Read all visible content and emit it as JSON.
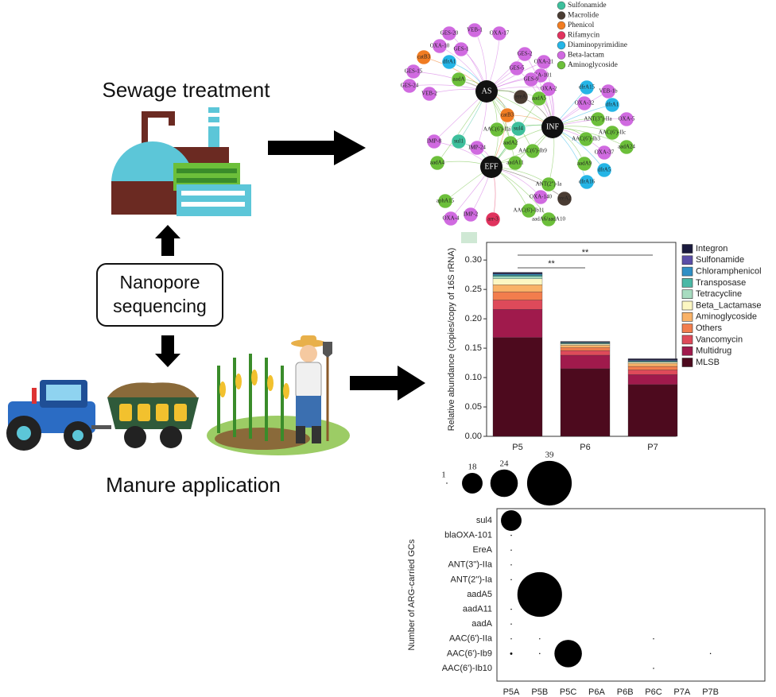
{
  "labels": {
    "sewage": "Sewage treatment",
    "nanopore": [
      "Nanopore",
      "sequencing"
    ],
    "manure": "Manure application"
  },
  "network": {
    "hubs": [
      "AS",
      "INF",
      "EFF"
    ],
    "classes": [
      {
        "name": "Sulfonamide",
        "color": "#3dbf9c"
      },
      {
        "name": "Macrolide",
        "color": "#4a3c33"
      },
      {
        "name": "Phenicol",
        "color": "#f07c22"
      },
      {
        "name": "Rifamycin",
        "color": "#e0335e"
      },
      {
        "name": "Diaminopyrimidine",
        "color": "#25b5e6"
      },
      {
        "name": "Beta-lactam",
        "color": "#d06ae0"
      },
      {
        "name": "Aminoglycoside",
        "color": "#6cbf3a"
      }
    ],
    "nodes": [
      {
        "label": "GES-20",
        "class": 5,
        "links": [
          0
        ]
      },
      {
        "label": "VEB-1",
        "class": 5,
        "links": [
          0
        ]
      },
      {
        "label": "OXA-17",
        "class": 5,
        "links": [
          0
        ]
      },
      {
        "label": "OXA-10",
        "class": 5,
        "links": [
          0
        ]
      },
      {
        "label": "GES-1",
        "class": 5,
        "links": [
          0
        ]
      },
      {
        "label": "catB3",
        "class": 2,
        "links": [
          0
        ]
      },
      {
        "label": "dfrA1",
        "class": 4,
        "links": [
          0
        ]
      },
      {
        "label": "GES-15",
        "class": 5,
        "links": [
          0
        ]
      },
      {
        "label": "aadA",
        "class": 6,
        "links": [
          0,
          1
        ]
      },
      {
        "label": "GES-24",
        "class": 5,
        "links": [
          0
        ]
      },
      {
        "label": "VEB-2",
        "class": 5,
        "links": [
          0
        ]
      },
      {
        "label": "GES-2",
        "class": 5,
        "links": [
          0,
          1
        ]
      },
      {
        "label": "OXA-21",
        "class": 5,
        "links": [
          0,
          1
        ]
      },
      {
        "label": "GES-5",
        "class": 5,
        "links": [
          0,
          1
        ]
      },
      {
        "label": "OXA-101",
        "class": 5,
        "links": [
          0,
          1
        ]
      },
      {
        "label": "GES-9",
        "class": 5,
        "links": [
          0,
          1
        ]
      },
      {
        "label": "OXA-2",
        "class": 5,
        "links": [
          0,
          1
        ]
      },
      {
        "label": "ereA",
        "class": 1,
        "links": [
          0,
          1
        ]
      },
      {
        "label": "aadA5",
        "class": 6,
        "links": [
          0,
          1,
          2
        ]
      },
      {
        "label": "catB3",
        "class": 2,
        "links": [
          0,
          1,
          2
        ]
      },
      {
        "label": "sul4",
        "class": 0,
        "links": [
          0,
          1,
          2
        ]
      },
      {
        "label": "AAC(6')-IIa",
        "class": 6,
        "links": [
          0,
          1,
          2
        ]
      },
      {
        "label": "sul1",
        "class": 0,
        "links": [
          0,
          2
        ]
      },
      {
        "label": "IMP-8",
        "class": 5,
        "links": [
          0,
          2
        ]
      },
      {
        "label": "IMP-24",
        "class": 5,
        "links": [
          0,
          2
        ]
      },
      {
        "label": "aadA2",
        "class": 6,
        "links": [
          0,
          1,
          2
        ]
      },
      {
        "label": "aadA4",
        "class": 6,
        "links": [
          0,
          2
        ]
      },
      {
        "label": "AAC(6')-Ib9",
        "class": 6,
        "links": [
          0,
          1,
          2
        ]
      },
      {
        "label": "aadA11",
        "class": 6,
        "links": [
          0,
          1,
          2
        ]
      },
      {
        "label": "dfrA15",
        "class": 4,
        "links": [
          1
        ]
      },
      {
        "label": "VEB-1b",
        "class": 5,
        "links": [
          1
        ]
      },
      {
        "label": "OXA-32",
        "class": 5,
        "links": [
          1
        ]
      },
      {
        "label": "dfrA1",
        "class": 4,
        "links": [
          1
        ]
      },
      {
        "label": "ANT(3'')-IIa",
        "class": 6,
        "links": [
          1
        ]
      },
      {
        "label": "OXA-5",
        "class": 5,
        "links": [
          1
        ]
      },
      {
        "label": "AAC(6')-IIc",
        "class": 6,
        "links": [
          1
        ]
      },
      {
        "label": "AAC(6')-Ib3",
        "class": 6,
        "links": [
          1
        ]
      },
      {
        "label": "aadA24",
        "class": 6,
        "links": [
          1
        ]
      },
      {
        "label": "OXA-37",
        "class": 5,
        "links": [
          1
        ]
      },
      {
        "label": "aadA9",
        "class": 6,
        "links": [
          1
        ]
      },
      {
        "label": "dfrA5",
        "class": 4,
        "links": [
          1
        ]
      },
      {
        "label": "dfrA16",
        "class": 4,
        "links": [
          1
        ]
      },
      {
        "label": "ANT(2'')-Ia",
        "class": 6,
        "links": [
          1,
          2
        ]
      },
      {
        "label": "OXA-140",
        "class": 5,
        "links": [
          2
        ]
      },
      {
        "label": "ereA2",
        "class": 1,
        "links": [
          2
        ]
      },
      {
        "label": "aphA15",
        "class": 6,
        "links": [
          2
        ]
      },
      {
        "label": "AAC(6')-Ib11",
        "class": 6,
        "links": [
          2
        ]
      },
      {
        "label": "aadA6/aadA10",
        "class": 6,
        "links": [
          2
        ]
      },
      {
        "label": "OXA-4",
        "class": 5,
        "links": [
          2
        ]
      },
      {
        "label": "IMP-2",
        "class": 5,
        "links": [
          2
        ]
      },
      {
        "label": "arr-3",
        "class": 3,
        "links": [
          2
        ]
      }
    ]
  },
  "chart_data": [
    {
      "type": "stacked_bar",
      "ylabel": "Relative abundance (copies/copy of 16S rRNA)",
      "categories": [
        "P5",
        "P6",
        "P7"
      ],
      "ylim": [
        0,
        0.33
      ],
      "yticks": [
        {
          "value": 0,
          "label": "0.00"
        },
        {
          "value": 0.05,
          "label": "0.05"
        },
        {
          "value": 0.1,
          "label": "0.10"
        },
        {
          "value": 0.15,
          "label": "0.15"
        },
        {
          "value": 0.2,
          "label": "0.20"
        },
        {
          "value": 0.25,
          "label": "0.25"
        },
        {
          "value": 0.3,
          "label": "0.30"
        }
      ],
      "annotations": [
        "**",
        "**"
      ],
      "series": [
        {
          "name": "Integron",
          "color": "#1a1a3e",
          "values": [
            0.002,
            0.001,
            0.002
          ]
        },
        {
          "name": "Sulfonamide",
          "color": "#5b4ea8",
          "values": [
            0.001,
            0.0005,
            0.001
          ]
        },
        {
          "name": "Chloramphenicol",
          "color": "#2f8fc5",
          "values": [
            0.002,
            0.001,
            0.001
          ]
        },
        {
          "name": "Transposase",
          "color": "#4bb8a6",
          "values": [
            0.002,
            0.001,
            0.001
          ]
        },
        {
          "name": "Tetracycline",
          "color": "#a7dcc0",
          "values": [
            0.004,
            0.001,
            0.001
          ]
        },
        {
          "name": "Beta_Lactamase",
          "color": "#fcf7c2",
          "values": [
            0.01,
            0.002,
            0.002
          ]
        },
        {
          "name": "Aminoglycoside",
          "color": "#f9b267",
          "values": [
            0.012,
            0.004,
            0.005
          ]
        },
        {
          "name": "Others",
          "color": "#f27d4d",
          "values": [
            0.014,
            0.005,
            0.006
          ]
        },
        {
          "name": "Vancomycin",
          "color": "#de4a5a",
          "values": [
            0.016,
            0.008,
            0.008
          ]
        },
        {
          "name": "Multidrug",
          "color": "#a01a4c",
          "values": [
            0.048,
            0.023,
            0.017
          ]
        },
        {
          "name": "MLSB",
          "color": "#4d0a1e",
          "values": [
            0.168,
            0.115,
            0.088
          ]
        }
      ]
    },
    {
      "type": "bubble",
      "ylabel": "Number of ARG-carried GCs",
      "x_categories": [
        "P5A",
        "P5B",
        "P5C",
        "P6A",
        "P6B",
        "P6C",
        "P7A",
        "P7B"
      ],
      "y_categories": [
        "sul4",
        "blaOXA-101",
        "EreA",
        "ANT(3'')-IIa",
        "ANT(2'')-Ia",
        "aadA5",
        "aadA11",
        "aadA",
        "AAC(6')-IIa",
        "AAC(6')-Ib9",
        "AAC(6')-Ib10"
      ],
      "size_legend": [
        1,
        18,
        24,
        39
      ],
      "color": "#000000",
      "points": [
        {
          "x": 0,
          "y": 0,
          "size": 18
        },
        {
          "x": 1,
          "y": 5,
          "size": 39
        },
        {
          "x": 2,
          "y": 9,
          "size": 24
        },
        {
          "x": 0,
          "y": 1,
          "size": 1
        },
        {
          "x": 0,
          "y": 2,
          "size": 1
        },
        {
          "x": 0,
          "y": 3,
          "size": 1
        },
        {
          "x": 0,
          "y": 4,
          "size": 1
        },
        {
          "x": 0,
          "y": 6,
          "size": 1
        },
        {
          "x": 0,
          "y": 7,
          "size": 1
        },
        {
          "x": 0,
          "y": 8,
          "size": 1
        },
        {
          "x": 0,
          "y": 9,
          "size": 2
        },
        {
          "x": 1,
          "y": 8,
          "size": 1
        },
        {
          "x": 1,
          "y": 9,
          "size": 1
        },
        {
          "x": 5,
          "y": 8,
          "size": 1
        },
        {
          "x": 5,
          "y": 10,
          "size": 1
        },
        {
          "x": 7,
          "y": 9,
          "size": 1
        }
      ]
    }
  ]
}
